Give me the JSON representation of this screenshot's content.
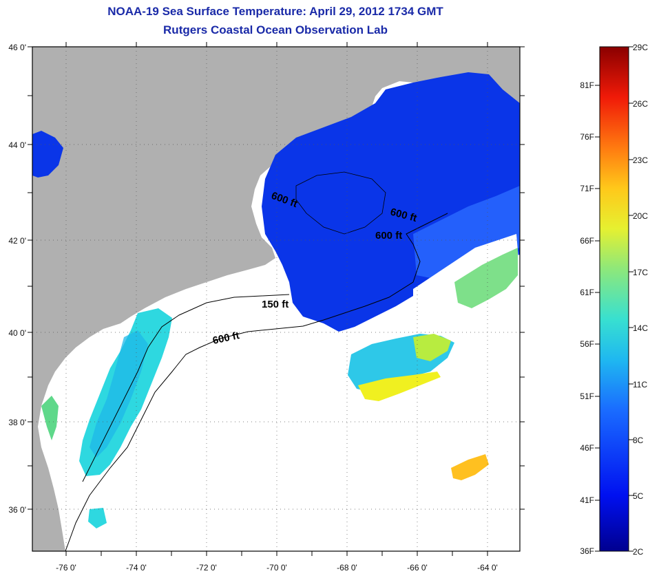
{
  "title": "NOAA-19 Sea Surface Temperature:  April 29, 2012 1734 GMT",
  "subtitle": "Rutgers Coastal Ocean Observation Lab",
  "lat_labels": [
    "46 0'",
    "44 0'",
    "42 0'",
    "40 0'",
    "38 0'",
    "36 0'"
  ],
  "lon_labels": [
    "-76 0'",
    "-74 0'",
    "-72 0'",
    "-70 0'",
    "-68 0'",
    "-66 0'",
    "-64 0'"
  ],
  "contour_labels": [
    "600 ft",
    "600 ft",
    "600 ft",
    "150 ft",
    "600 ft"
  ],
  "colorbar": {
    "fahrenheit": [
      "81F",
      "76F",
      "71F",
      "66F",
      "61F",
      "56F",
      "51F",
      "46F",
      "41F",
      "36F"
    ],
    "celsius": [
      "29C",
      "26C",
      "23C",
      "20C",
      "17C",
      "14C",
      "11C",
      "8C",
      "5C",
      "2C"
    ]
  },
  "colors": {
    "land": "#b0b0b0",
    "no_data": "#ffffff",
    "title": "#1a2aa8",
    "cold": "#0a2ae0",
    "warm": "#8a0000"
  }
}
